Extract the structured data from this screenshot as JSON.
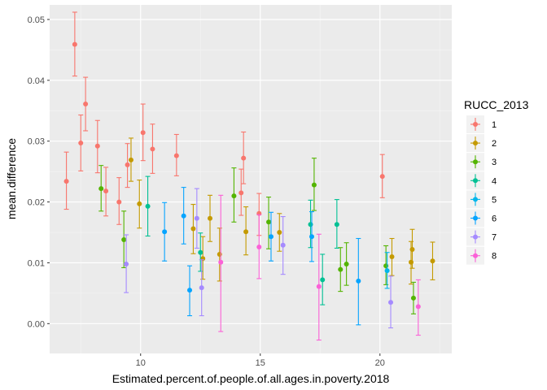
{
  "chart_data": {
    "type": "scatter",
    "error_bars": true,
    "xlabel": "Estimated.percent.of.people.of.all.ages.in.poverty.2018",
    "ylabel": "mean.difference",
    "xlim": [
      6.2,
      23.0
    ],
    "ylim": [
      -0.0049,
      0.0524
    ],
    "x_ticks": [
      10,
      15,
      20
    ],
    "y_ticks": [
      0.0,
      0.01,
      0.02,
      0.03,
      0.04,
      0.05
    ],
    "y_tick_labels": [
      "0.00",
      "0.01",
      "0.02",
      "0.03",
      "0.04",
      "0.05"
    ],
    "grid": true,
    "legend_position": "right",
    "legend_title": "RUCC_2013",
    "series": [
      {
        "name": "1",
        "color": "#F8766D",
        "points": [
          {
            "x": 6.9,
            "y": 0.0234,
            "lo": 0.0188,
            "hi": 0.0282
          },
          {
            "x": 7.25,
            "y": 0.0459,
            "lo": 0.0407,
            "hi": 0.0512
          },
          {
            "x": 7.5,
            "y": 0.0297,
            "lo": 0.0251,
            "hi": 0.0343
          },
          {
            "x": 7.7,
            "y": 0.0361,
            "lo": 0.0317,
            "hi": 0.0405
          },
          {
            "x": 8.2,
            "y": 0.0292,
            "lo": 0.0248,
            "hi": 0.0334
          },
          {
            "x": 8.55,
            "y": 0.0218,
            "lo": 0.0177,
            "hi": 0.0257
          },
          {
            "x": 9.1,
            "y": 0.02,
            "lo": 0.0163,
            "hi": 0.024
          },
          {
            "x": 9.45,
            "y": 0.0261,
            "lo": 0.0224,
            "hi": 0.0296
          },
          {
            "x": 10.1,
            "y": 0.0314,
            "lo": 0.0268,
            "hi": 0.0361
          },
          {
            "x": 10.5,
            "y": 0.0287,
            "lo": 0.0247,
            "hi": 0.0328
          },
          {
            "x": 11.5,
            "y": 0.0276,
            "lo": 0.0243,
            "hi": 0.0311
          },
          {
            "x": 14.2,
            "y": 0.0215,
            "lo": 0.0178,
            "hi": 0.0254
          },
          {
            "x": 14.3,
            "y": 0.0272,
            "lo": 0.023,
            "hi": 0.0315
          },
          {
            "x": 14.95,
            "y": 0.0181,
            "lo": 0.0145,
            "hi": 0.0214
          },
          {
            "x": 20.1,
            "y": 0.0242,
            "lo": 0.0207,
            "hi": 0.0278
          }
        ]
      },
      {
        "name": "2",
        "color": "#C49A00",
        "points": [
          {
            "x": 9.6,
            "y": 0.0269,
            "lo": 0.0234,
            "hi": 0.0305
          },
          {
            "x": 9.95,
            "y": 0.0197,
            "lo": 0.0157,
            "hi": 0.0236
          },
          {
            "x": 12.2,
            "y": 0.0156,
            "lo": 0.0115,
            "hi": 0.0196
          },
          {
            "x": 12.6,
            "y": 0.0107,
            "lo": 0.0073,
            "hi": 0.0143
          },
          {
            "x": 12.9,
            "y": 0.0173,
            "lo": 0.0135,
            "hi": 0.0211
          },
          {
            "x": 13.3,
            "y": 0.0114,
            "lo": 0.007,
            "hi": 0.0157
          },
          {
            "x": 14.4,
            "y": 0.0151,
            "lo": 0.0113,
            "hi": 0.0192
          },
          {
            "x": 15.8,
            "y": 0.015,
            "lo": 0.0119,
            "hi": 0.0181
          },
          {
            "x": 20.5,
            "y": 0.011,
            "lo": 0.0079,
            "hi": 0.014
          },
          {
            "x": 21.3,
            "y": 0.0101,
            "lo": 0.0065,
            "hi": 0.0135
          },
          {
            "x": 21.35,
            "y": 0.0122,
            "lo": 0.0091,
            "hi": 0.0155
          },
          {
            "x": 22.2,
            "y": 0.0103,
            "lo": 0.0072,
            "hi": 0.0134
          }
        ]
      },
      {
        "name": "3",
        "color": "#53B400",
        "points": [
          {
            "x": 8.35,
            "y": 0.0222,
            "lo": 0.0185,
            "hi": 0.026
          },
          {
            "x": 9.3,
            "y": 0.0138,
            "lo": 0.0092,
            "hi": 0.0185
          },
          {
            "x": 13.9,
            "y": 0.021,
            "lo": 0.0167,
            "hi": 0.0256
          },
          {
            "x": 15.35,
            "y": 0.0167,
            "lo": 0.0123,
            "hi": 0.0208
          },
          {
            "x": 17.25,
            "y": 0.0228,
            "lo": 0.0186,
            "hi": 0.0272
          },
          {
            "x": 18.35,
            "y": 0.0089,
            "lo": 0.0053,
            "hi": 0.0125
          },
          {
            "x": 18.6,
            "y": 0.0098,
            "lo": 0.0063,
            "hi": 0.0133
          },
          {
            "x": 20.25,
            "y": 0.0095,
            "lo": 0.0064,
            "hi": 0.0128
          },
          {
            "x": 21.4,
            "y": 0.0042,
            "lo": 0.0016,
            "hi": 0.0068
          }
        ]
      },
      {
        "name": "4",
        "color": "#00C094",
        "points": [
          {
            "x": 10.3,
            "y": 0.0193,
            "lo": 0.0144,
            "hi": 0.0242
          },
          {
            "x": 12.5,
            "y": 0.0117,
            "lo": 0.0086,
            "hi": 0.0149
          },
          {
            "x": 17.1,
            "y": 0.0163,
            "lo": 0.0125,
            "hi": 0.0203
          },
          {
            "x": 17.6,
            "y": 0.0072,
            "lo": 0.0031,
            "hi": 0.0114
          },
          {
            "x": 18.2,
            "y": 0.0163,
            "lo": 0.0124,
            "hi": 0.0204
          }
        ]
      },
      {
        "name": "5",
        "color": "#00B6EB",
        "points": [
          {
            "x": 20.3,
            "y": 0.0087,
            "lo": 0.0058,
            "hi": 0.0117
          }
        ]
      },
      {
        "name": "6",
        "color": "#06A4FF",
        "points": [
          {
            "x": 11.0,
            "y": 0.0151,
            "lo": 0.0103,
            "hi": 0.0199
          },
          {
            "x": 11.8,
            "y": 0.0177,
            "lo": 0.0131,
            "hi": 0.0224
          },
          {
            "x": 12.05,
            "y": 0.0055,
            "lo": 0.0013,
            "hi": 0.0095
          },
          {
            "x": 15.45,
            "y": 0.0143,
            "lo": 0.0103,
            "hi": 0.0183
          },
          {
            "x": 17.15,
            "y": 0.0143,
            "lo": 0.0102,
            "hi": 0.0184
          },
          {
            "x": 19.1,
            "y": 0.007,
            "lo": -0.0002,
            "hi": 0.014
          }
        ]
      },
      {
        "name": "7",
        "color": "#A58AFF",
        "points": [
          {
            "x": 9.4,
            "y": 0.0098,
            "lo": 0.0051,
            "hi": 0.0146
          },
          {
            "x": 12.35,
            "y": 0.0173,
            "lo": 0.0124,
            "hi": 0.0222
          },
          {
            "x": 12.55,
            "y": 0.0059,
            "lo": 0.0013,
            "hi": 0.0105
          },
          {
            "x": 15.95,
            "y": 0.0129,
            "lo": 0.0081,
            "hi": 0.0176
          },
          {
            "x": 20.45,
            "y": 0.0035,
            "lo": -0.0007,
            "hi": 0.0078
          }
        ]
      },
      {
        "name": "8",
        "color": "#FB61D7",
        "points": [
          {
            "x": 13.35,
            "y": 0.0101,
            "lo": -0.0013,
            "hi": 0.0211
          },
          {
            "x": 14.95,
            "y": 0.0126,
            "lo": 0.0074,
            "hi": 0.0179
          },
          {
            "x": 17.45,
            "y": 0.0061,
            "lo": -0.0027,
            "hi": 0.0147
          },
          {
            "x": 21.6,
            "y": 0.0028,
            "lo": -0.0019,
            "hi": 0.0072
          }
        ]
      }
    ]
  }
}
